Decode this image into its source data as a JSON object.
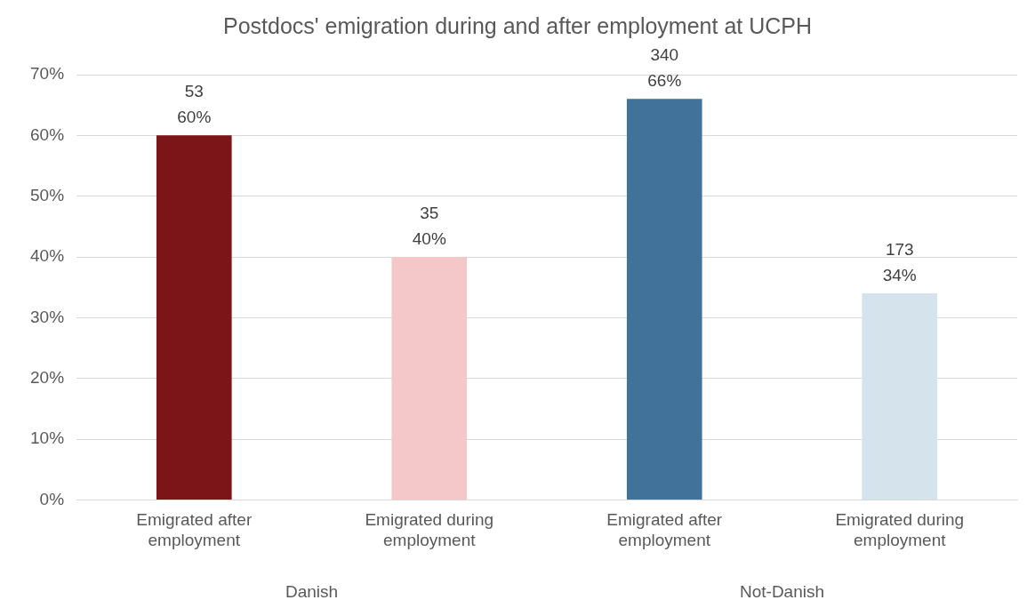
{
  "chart_data": {
    "type": "bar",
    "title": "Postdocs' emigration during and after employment at UCPH",
    "categories": [
      "Emigrated after employment",
      "Emigrated during employment",
      "Emigrated after employment",
      "Emigrated during employment"
    ],
    "values": [
      60,
      40,
      66,
      34
    ],
    "colors": [
      "#7b1517",
      "#f4c7c8",
      "#41739a",
      "#d5e3ec"
    ],
    "value_labels": [
      "53\n60%",
      "35\n40%",
      "340\n66%",
      "173\n34%"
    ],
    "ylim": [
      0,
      70
    ],
    "yticks": [
      {
        "value": 0,
        "label": "0%"
      },
      {
        "value": 10,
        "label": "10%"
      },
      {
        "value": 20,
        "label": "20%"
      },
      {
        "value": 30,
        "label": "30%"
      },
      {
        "value": 40,
        "label": "40%"
      },
      {
        "value": 50,
        "label": "50%"
      },
      {
        "value": 60,
        "label": "60%"
      },
      {
        "value": 70,
        "label": "70%"
      }
    ],
    "grid": "y",
    "annotations": [
      "Danish",
      "Not-Danish"
    ]
  }
}
